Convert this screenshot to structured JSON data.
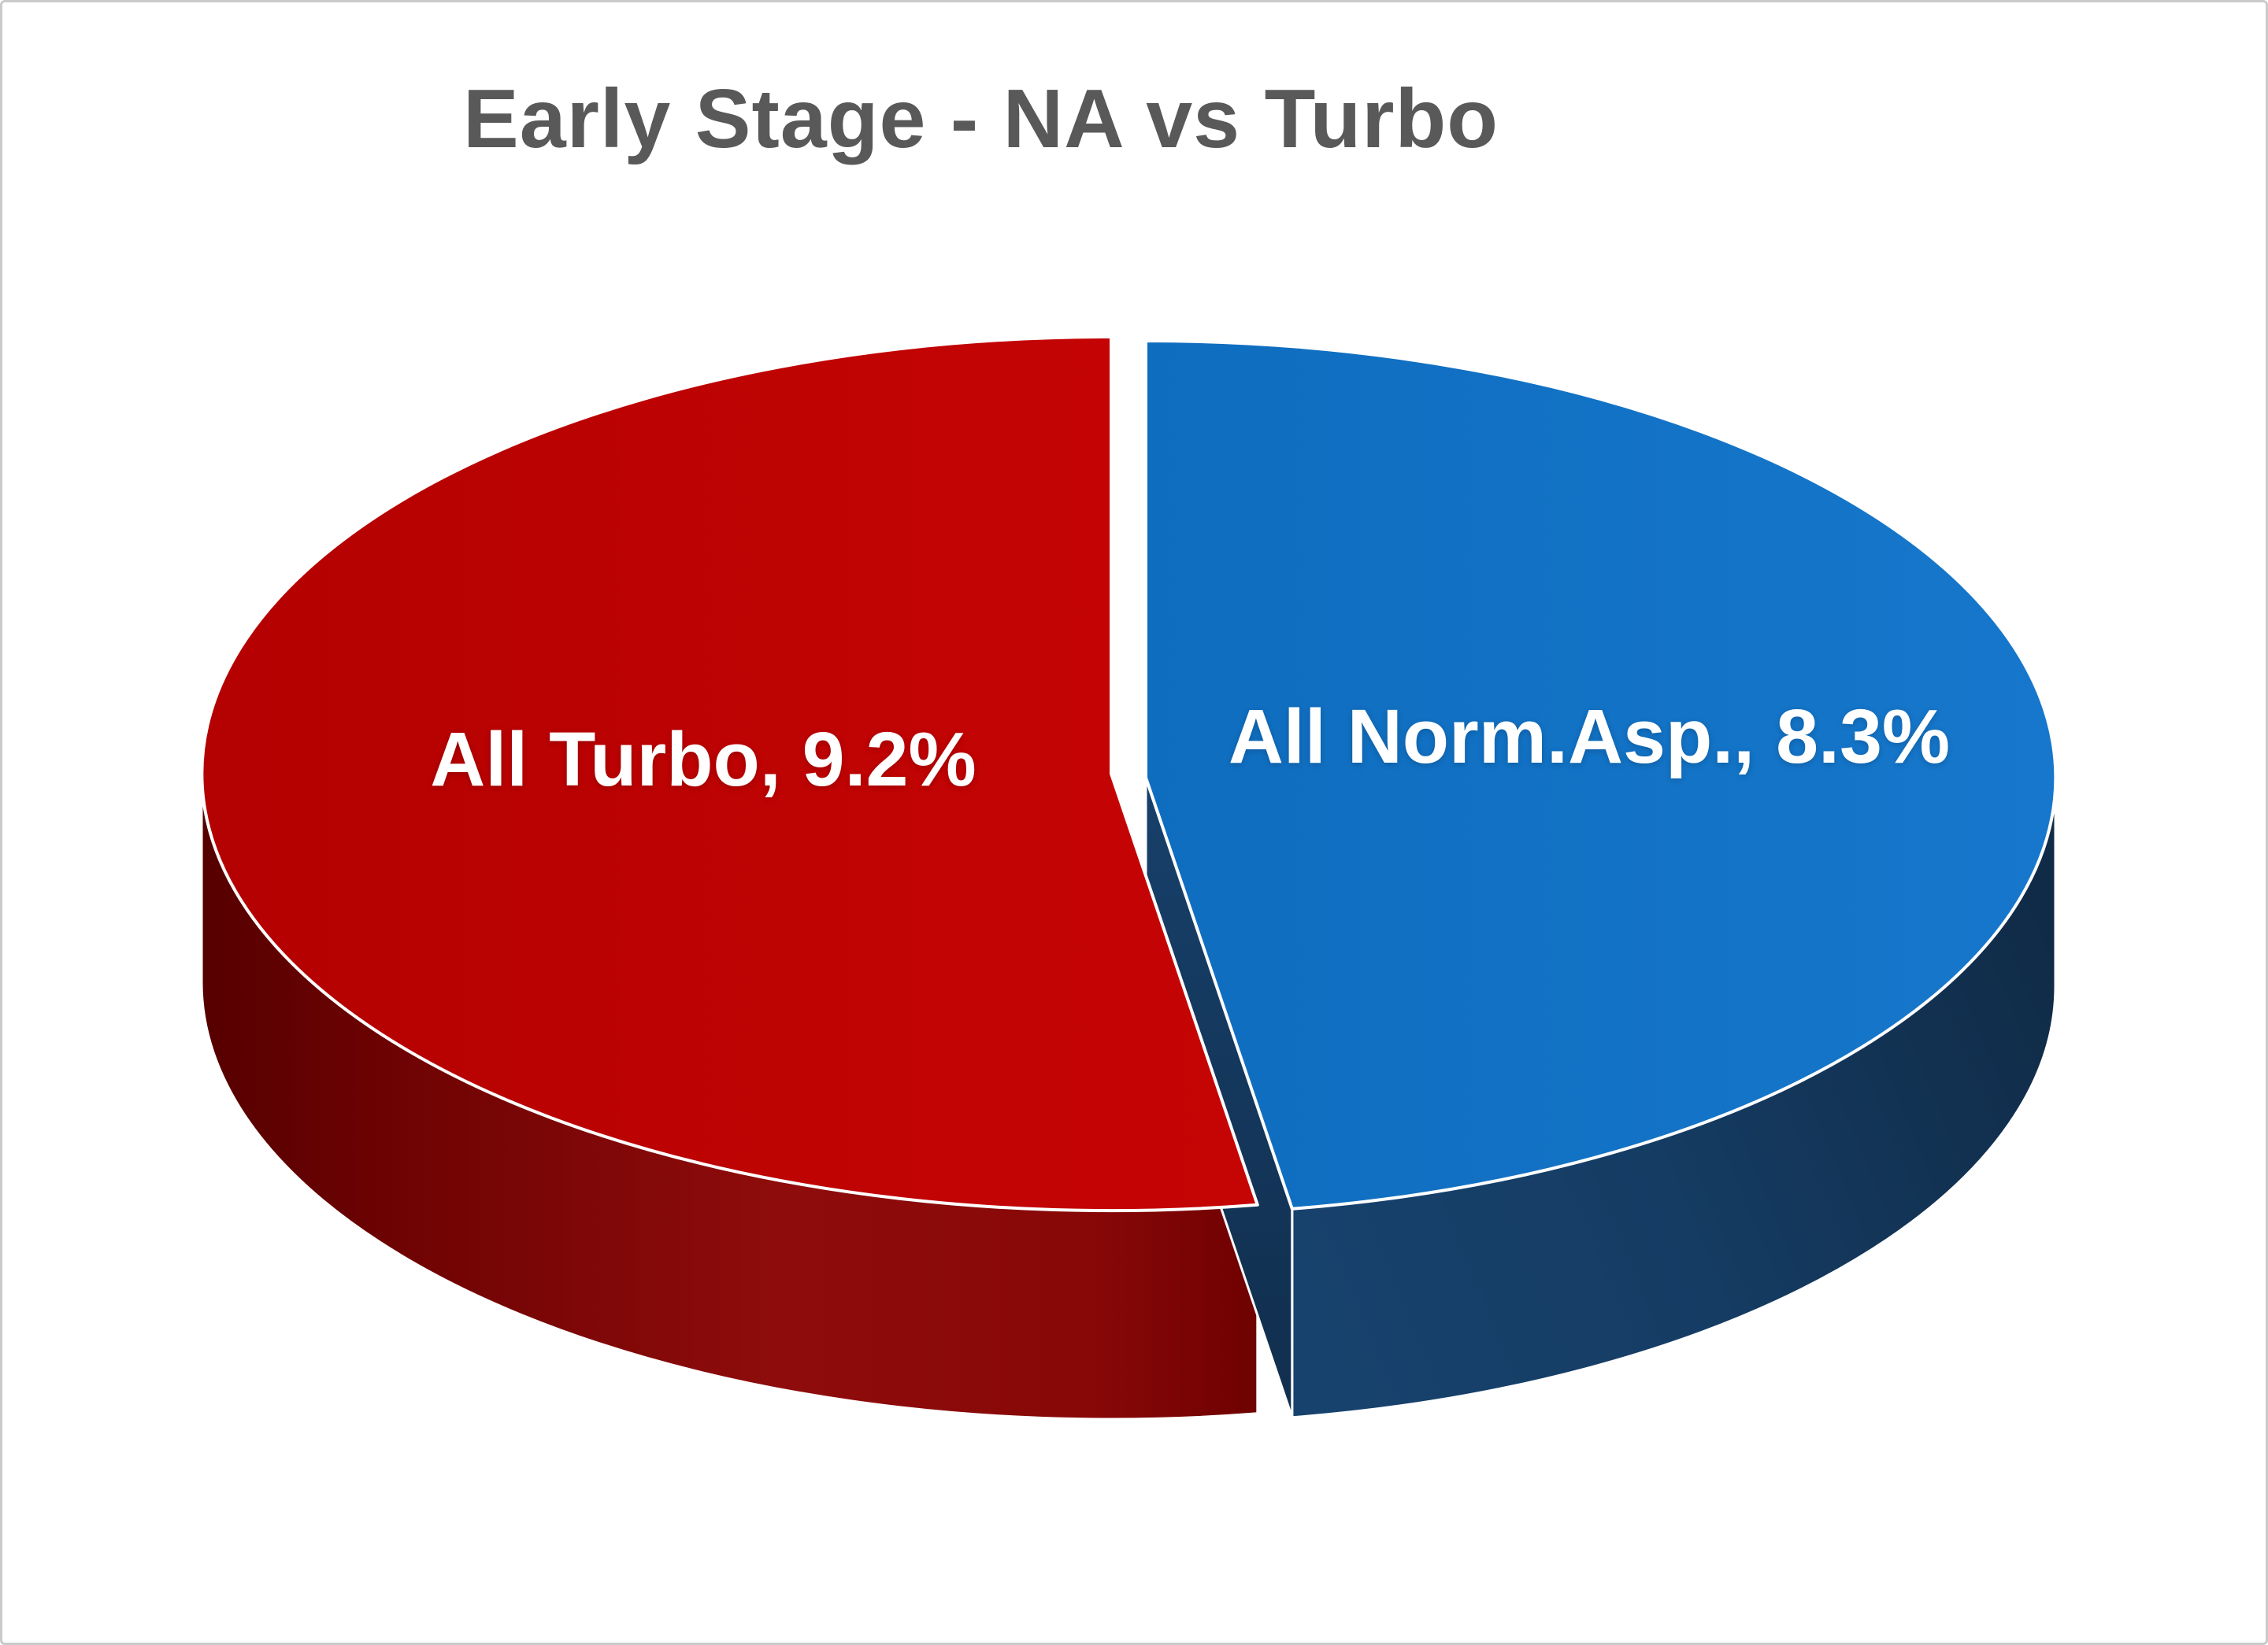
{
  "page": {
    "background": "#ffffff",
    "frame_border_color": "#cacaca"
  },
  "chart": {
    "title": "Early Stage - NA vs Turbo",
    "title_color": "#595959"
  },
  "chart_data": {
    "type": "pie",
    "style": "3d-exploded",
    "title": "Early Stage - NA vs Turbo",
    "legend_position": "none",
    "data_labels": "inside",
    "start_angle_deg": 90,
    "slices": [
      {
        "label": "All Turbo",
        "value": 9.2,
        "unit": "%",
        "display_label": "All Turbo, 9.2%",
        "top_color": "#c00505",
        "side_color": "#8b0a0a",
        "label_color": "#ffffff",
        "exploded": false
      },
      {
        "label": "All Norm.Asp.",
        "value": 8.3,
        "unit": "%",
        "display_label": "All Norm.Asp., 8.3%",
        "top_color": "#1373c6",
        "side_color": "#153c63",
        "label_color": "#ffffff",
        "exploded": true
      }
    ]
  }
}
